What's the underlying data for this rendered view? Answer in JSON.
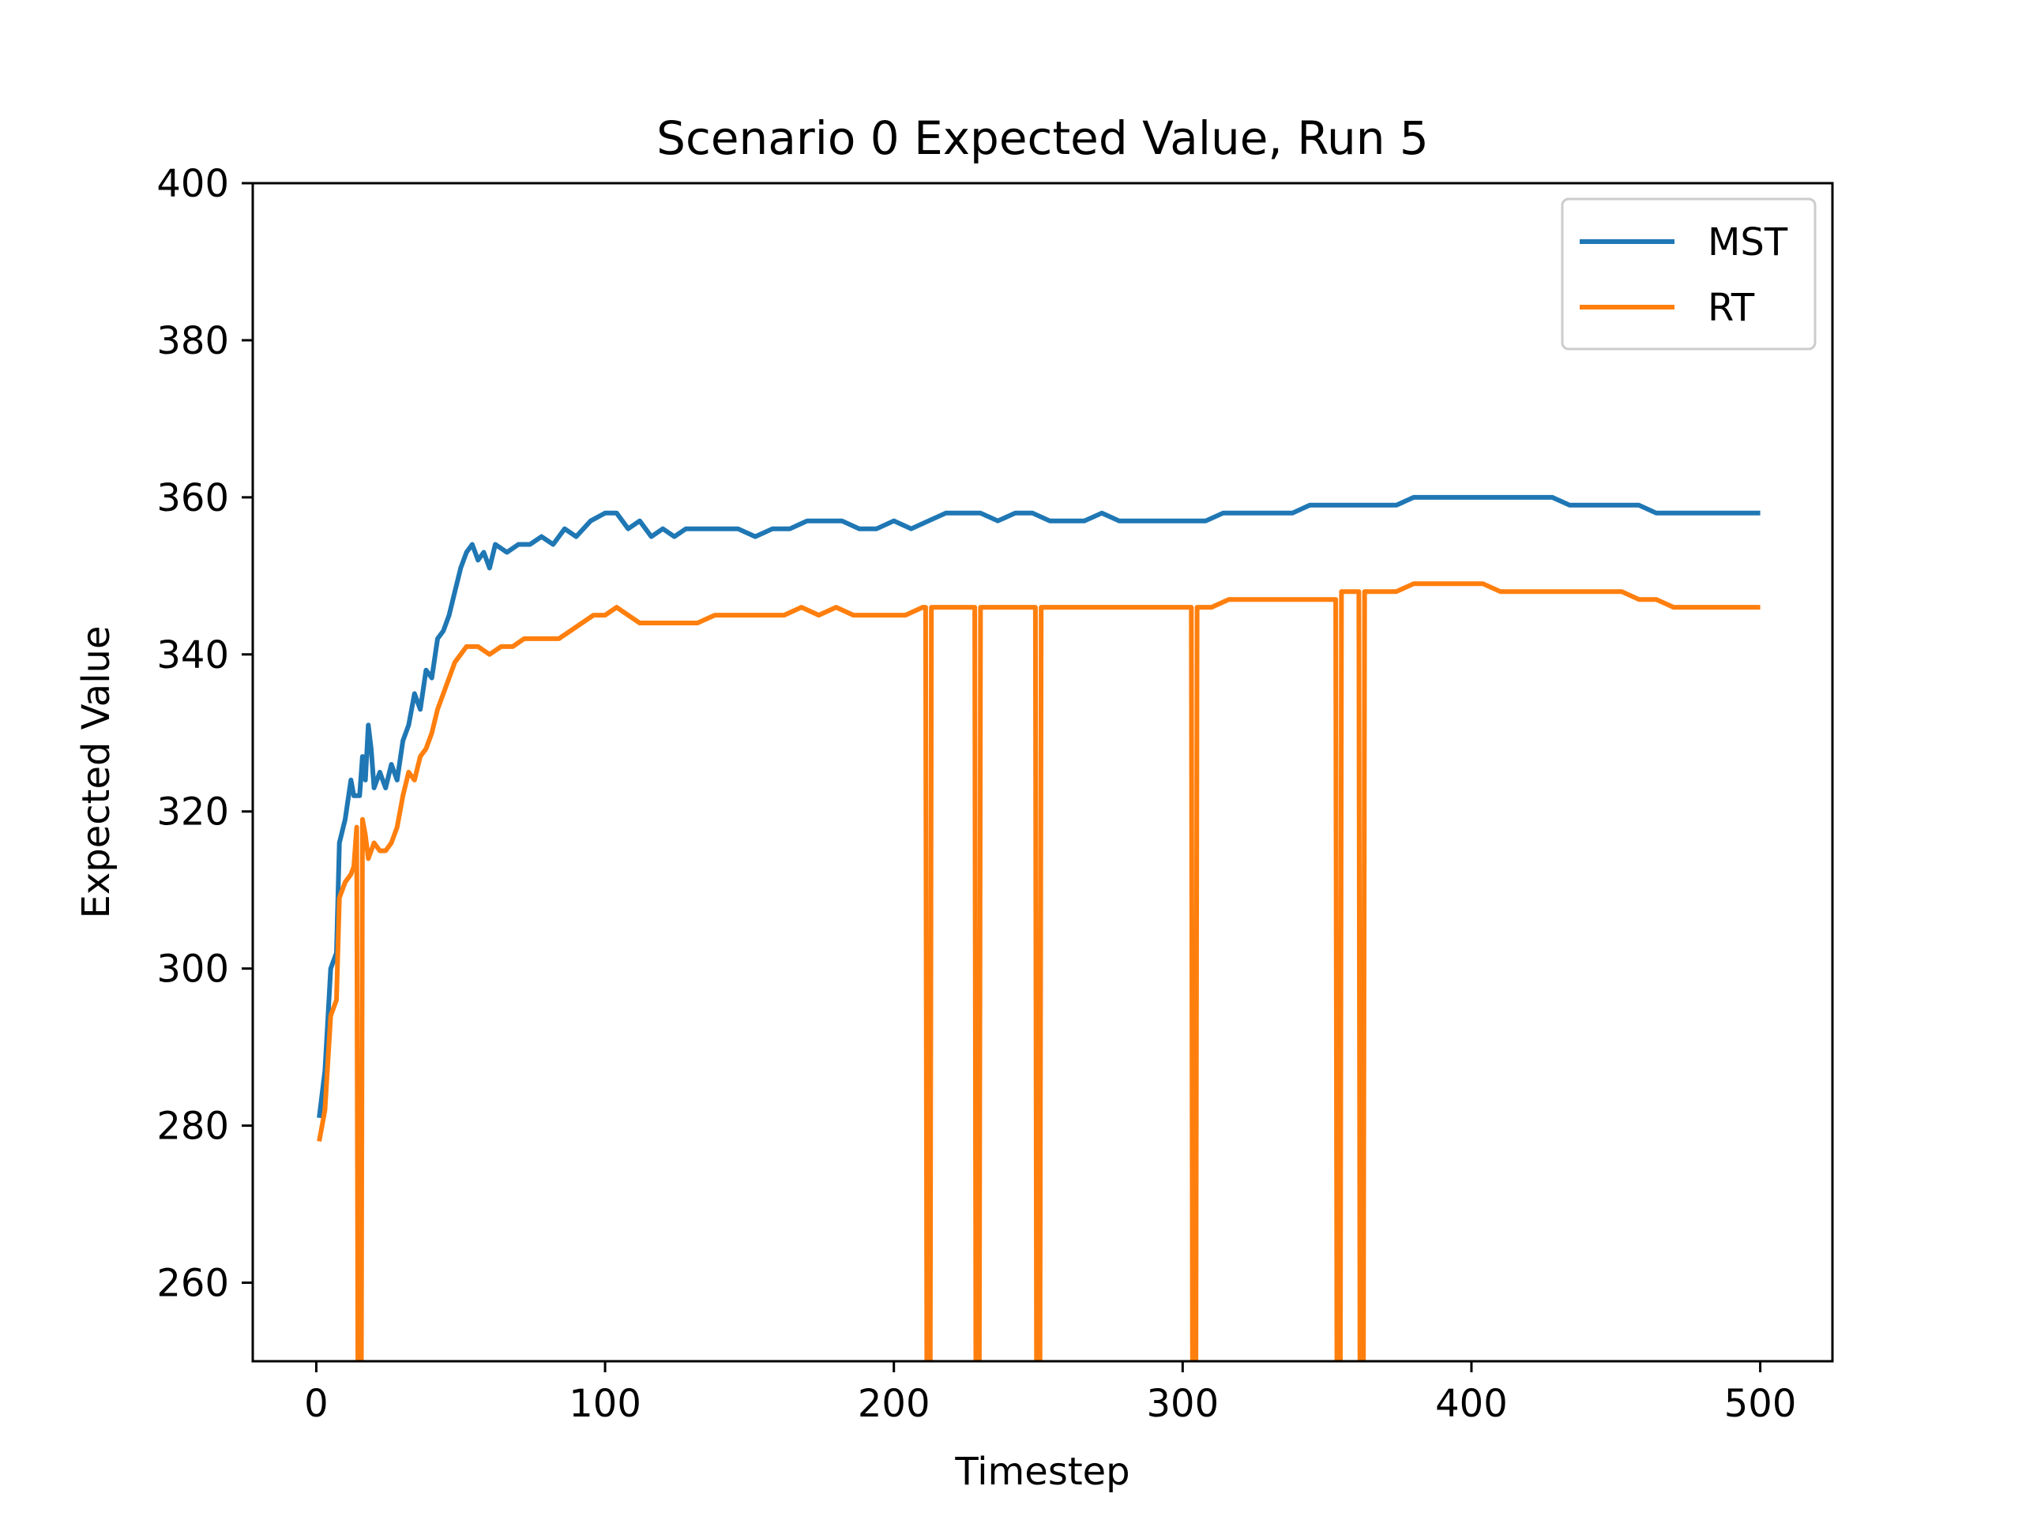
{
  "chart_data": {
    "type": "line",
    "title": "Scenario 0 Expected Value, Run 5",
    "xlabel": "Timestep",
    "ylabel": "Expected Value",
    "xlim": [
      -22,
      525
    ],
    "ylim": [
      250,
      400
    ],
    "xticks": [
      0,
      100,
      200,
      300,
      400,
      500
    ],
    "yticks": [
      260,
      280,
      300,
      320,
      340,
      360,
      380,
      400
    ],
    "grid": false,
    "legend": "top-right",
    "series": [
      {
        "name": "MST",
        "color": "#1f77b4",
        "points": [
          [
            1,
            281
          ],
          [
            3,
            287
          ],
          [
            5,
            300
          ],
          [
            7,
            302
          ],
          [
            8,
            316
          ],
          [
            10,
            319
          ],
          [
            12,
            324
          ],
          [
            13,
            322
          ],
          [
            15,
            322
          ],
          [
            16,
            327
          ],
          [
            17,
            324
          ],
          [
            18,
            331
          ],
          [
            19,
            328
          ],
          [
            20,
            323
          ],
          [
            22,
            325
          ],
          [
            24,
            323
          ],
          [
            26,
            326
          ],
          [
            28,
            324
          ],
          [
            30,
            329
          ],
          [
            32,
            331
          ],
          [
            34,
            335
          ],
          [
            36,
            333
          ],
          [
            38,
            338
          ],
          [
            40,
            337
          ],
          [
            42,
            342
          ],
          [
            44,
            343
          ],
          [
            46,
            345
          ],
          [
            48,
            348
          ],
          [
            50,
            351
          ],
          [
            52,
            353
          ],
          [
            54,
            354
          ],
          [
            56,
            352
          ],
          [
            58,
            353
          ],
          [
            60,
            351
          ],
          [
            62,
            354
          ],
          [
            66,
            353
          ],
          [
            70,
            354
          ],
          [
            74,
            354
          ],
          [
            78,
            355
          ],
          [
            82,
            354
          ],
          [
            86,
            356
          ],
          [
            90,
            355
          ],
          [
            95,
            357
          ],
          [
            100,
            358
          ],
          [
            104,
            358
          ],
          [
            108,
            356
          ],
          [
            112,
            357
          ],
          [
            116,
            355
          ],
          [
            120,
            356
          ],
          [
            124,
            355
          ],
          [
            128,
            356
          ],
          [
            134,
            356
          ],
          [
            140,
            356
          ],
          [
            146,
            356
          ],
          [
            152,
            355
          ],
          [
            158,
            356
          ],
          [
            164,
            356
          ],
          [
            170,
            357
          ],
          [
            176,
            357
          ],
          [
            182,
            357
          ],
          [
            188,
            356
          ],
          [
            194,
            356
          ],
          [
            200,
            357
          ],
          [
            206,
            356
          ],
          [
            212,
            357
          ],
          [
            218,
            358
          ],
          [
            224,
            358
          ],
          [
            230,
            358
          ],
          [
            236,
            357
          ],
          [
            242,
            358
          ],
          [
            248,
            358
          ],
          [
            254,
            357
          ],
          [
            260,
            357
          ],
          [
            266,
            357
          ],
          [
            272,
            358
          ],
          [
            278,
            357
          ],
          [
            284,
            357
          ],
          [
            290,
            357
          ],
          [
            296,
            357
          ],
          [
            302,
            357
          ],
          [
            308,
            357
          ],
          [
            314,
            358
          ],
          [
            320,
            358
          ],
          [
            326,
            358
          ],
          [
            332,
            358
          ],
          [
            338,
            358
          ],
          [
            344,
            359
          ],
          [
            350,
            359
          ],
          [
            356,
            359
          ],
          [
            362,
            359
          ],
          [
            368,
            359
          ],
          [
            374,
            359
          ],
          [
            380,
            360
          ],
          [
            386,
            360
          ],
          [
            392,
            360
          ],
          [
            398,
            360
          ],
          [
            404,
            360
          ],
          [
            410,
            360
          ],
          [
            416,
            360
          ],
          [
            422,
            360
          ],
          [
            428,
            360
          ],
          [
            434,
            359
          ],
          [
            440,
            359
          ],
          [
            446,
            359
          ],
          [
            452,
            359
          ],
          [
            458,
            359
          ],
          [
            464,
            358
          ],
          [
            470,
            358
          ],
          [
            476,
            358
          ],
          [
            482,
            358
          ],
          [
            488,
            358
          ],
          [
            494,
            358
          ],
          [
            500,
            358
          ]
        ]
      },
      {
        "name": "RT",
        "color": "#ff7f0e",
        "points": [
          [
            1,
            278
          ],
          [
            3,
            282
          ],
          [
            5,
            294
          ],
          [
            7,
            296
          ],
          [
            8,
            309
          ],
          [
            10,
            311
          ],
          [
            12,
            312
          ],
          [
            13,
            313
          ],
          [
            14,
            318
          ],
          [
            14.4,
            250
          ],
          [
            15.6,
            250
          ],
          [
            16,
            319
          ],
          [
            17,
            317
          ],
          [
            18,
            314
          ],
          [
            20,
            316
          ],
          [
            22,
            315
          ],
          [
            24,
            315
          ],
          [
            26,
            316
          ],
          [
            28,
            318
          ],
          [
            30,
            322
          ],
          [
            32,
            325
          ],
          [
            34,
            324
          ],
          [
            36,
            327
          ],
          [
            38,
            328
          ],
          [
            40,
            330
          ],
          [
            42,
            333
          ],
          [
            44,
            335
          ],
          [
            46,
            337
          ],
          [
            48,
            339
          ],
          [
            50,
            340
          ],
          [
            52,
            341
          ],
          [
            56,
            341
          ],
          [
            60,
            340
          ],
          [
            64,
            341
          ],
          [
            68,
            341
          ],
          [
            72,
            342
          ],
          [
            76,
            342
          ],
          [
            80,
            342
          ],
          [
            84,
            342
          ],
          [
            88,
            343
          ],
          [
            92,
            344
          ],
          [
            96,
            345
          ],
          [
            100,
            345
          ],
          [
            104,
            346
          ],
          [
            108,
            345
          ],
          [
            112,
            344
          ],
          [
            116,
            344
          ],
          [
            120,
            344
          ],
          [
            126,
            344
          ],
          [
            132,
            344
          ],
          [
            138,
            345
          ],
          [
            144,
            345
          ],
          [
            150,
            345
          ],
          [
            156,
            345
          ],
          [
            162,
            345
          ],
          [
            168,
            346
          ],
          [
            174,
            345
          ],
          [
            180,
            346
          ],
          [
            186,
            345
          ],
          [
            192,
            345
          ],
          [
            198,
            345
          ],
          [
            204,
            345
          ],
          [
            210,
            346
          ],
          [
            211,
            346
          ],
          [
            211.4,
            250
          ],
          [
            212.6,
            250
          ],
          [
            213,
            346
          ],
          [
            216,
            346
          ],
          [
            222,
            346
          ],
          [
            227,
            346
          ],
          [
            228,
            346
          ],
          [
            228.4,
            250
          ],
          [
            229.6,
            250
          ],
          [
            230,
            346
          ],
          [
            236,
            346
          ],
          [
            242,
            346
          ],
          [
            248,
            346
          ],
          [
            249,
            346
          ],
          [
            249.4,
            250
          ],
          [
            250.6,
            250
          ],
          [
            251,
            346
          ],
          [
            256,
            346
          ],
          [
            262,
            346
          ],
          [
            268,
            346
          ],
          [
            274,
            346
          ],
          [
            280,
            346
          ],
          [
            286,
            346
          ],
          [
            292,
            346
          ],
          [
            298,
            346
          ],
          [
            302,
            346
          ],
          [
            303,
            346
          ],
          [
            303.4,
            250
          ],
          [
            304.6,
            250
          ],
          [
            305,
            346
          ],
          [
            310,
            346
          ],
          [
            316,
            347
          ],
          [
            322,
            347
          ],
          [
            328,
            347
          ],
          [
            334,
            347
          ],
          [
            340,
            347
          ],
          [
            346,
            347
          ],
          [
            352,
            347
          ],
          [
            353,
            347
          ],
          [
            353.4,
            250
          ],
          [
            354.6,
            250
          ],
          [
            355,
            348
          ],
          [
            358,
            348
          ],
          [
            360,
            348
          ],
          [
            361,
            348
          ],
          [
            361.4,
            250
          ],
          [
            362.6,
            250
          ],
          [
            363,
            348
          ],
          [
            368,
            348
          ],
          [
            374,
            348
          ],
          [
            380,
            349
          ],
          [
            386,
            349
          ],
          [
            392,
            349
          ],
          [
            398,
            349
          ],
          [
            404,
            349
          ],
          [
            410,
            348
          ],
          [
            416,
            348
          ],
          [
            422,
            348
          ],
          [
            428,
            348
          ],
          [
            434,
            348
          ],
          [
            440,
            348
          ],
          [
            446,
            348
          ],
          [
            452,
            348
          ],
          [
            458,
            347
          ],
          [
            464,
            347
          ],
          [
            470,
            346
          ],
          [
            476,
            346
          ],
          [
            482,
            346
          ],
          [
            488,
            346
          ],
          [
            494,
            346
          ],
          [
            500,
            346
          ]
        ]
      }
    ]
  }
}
